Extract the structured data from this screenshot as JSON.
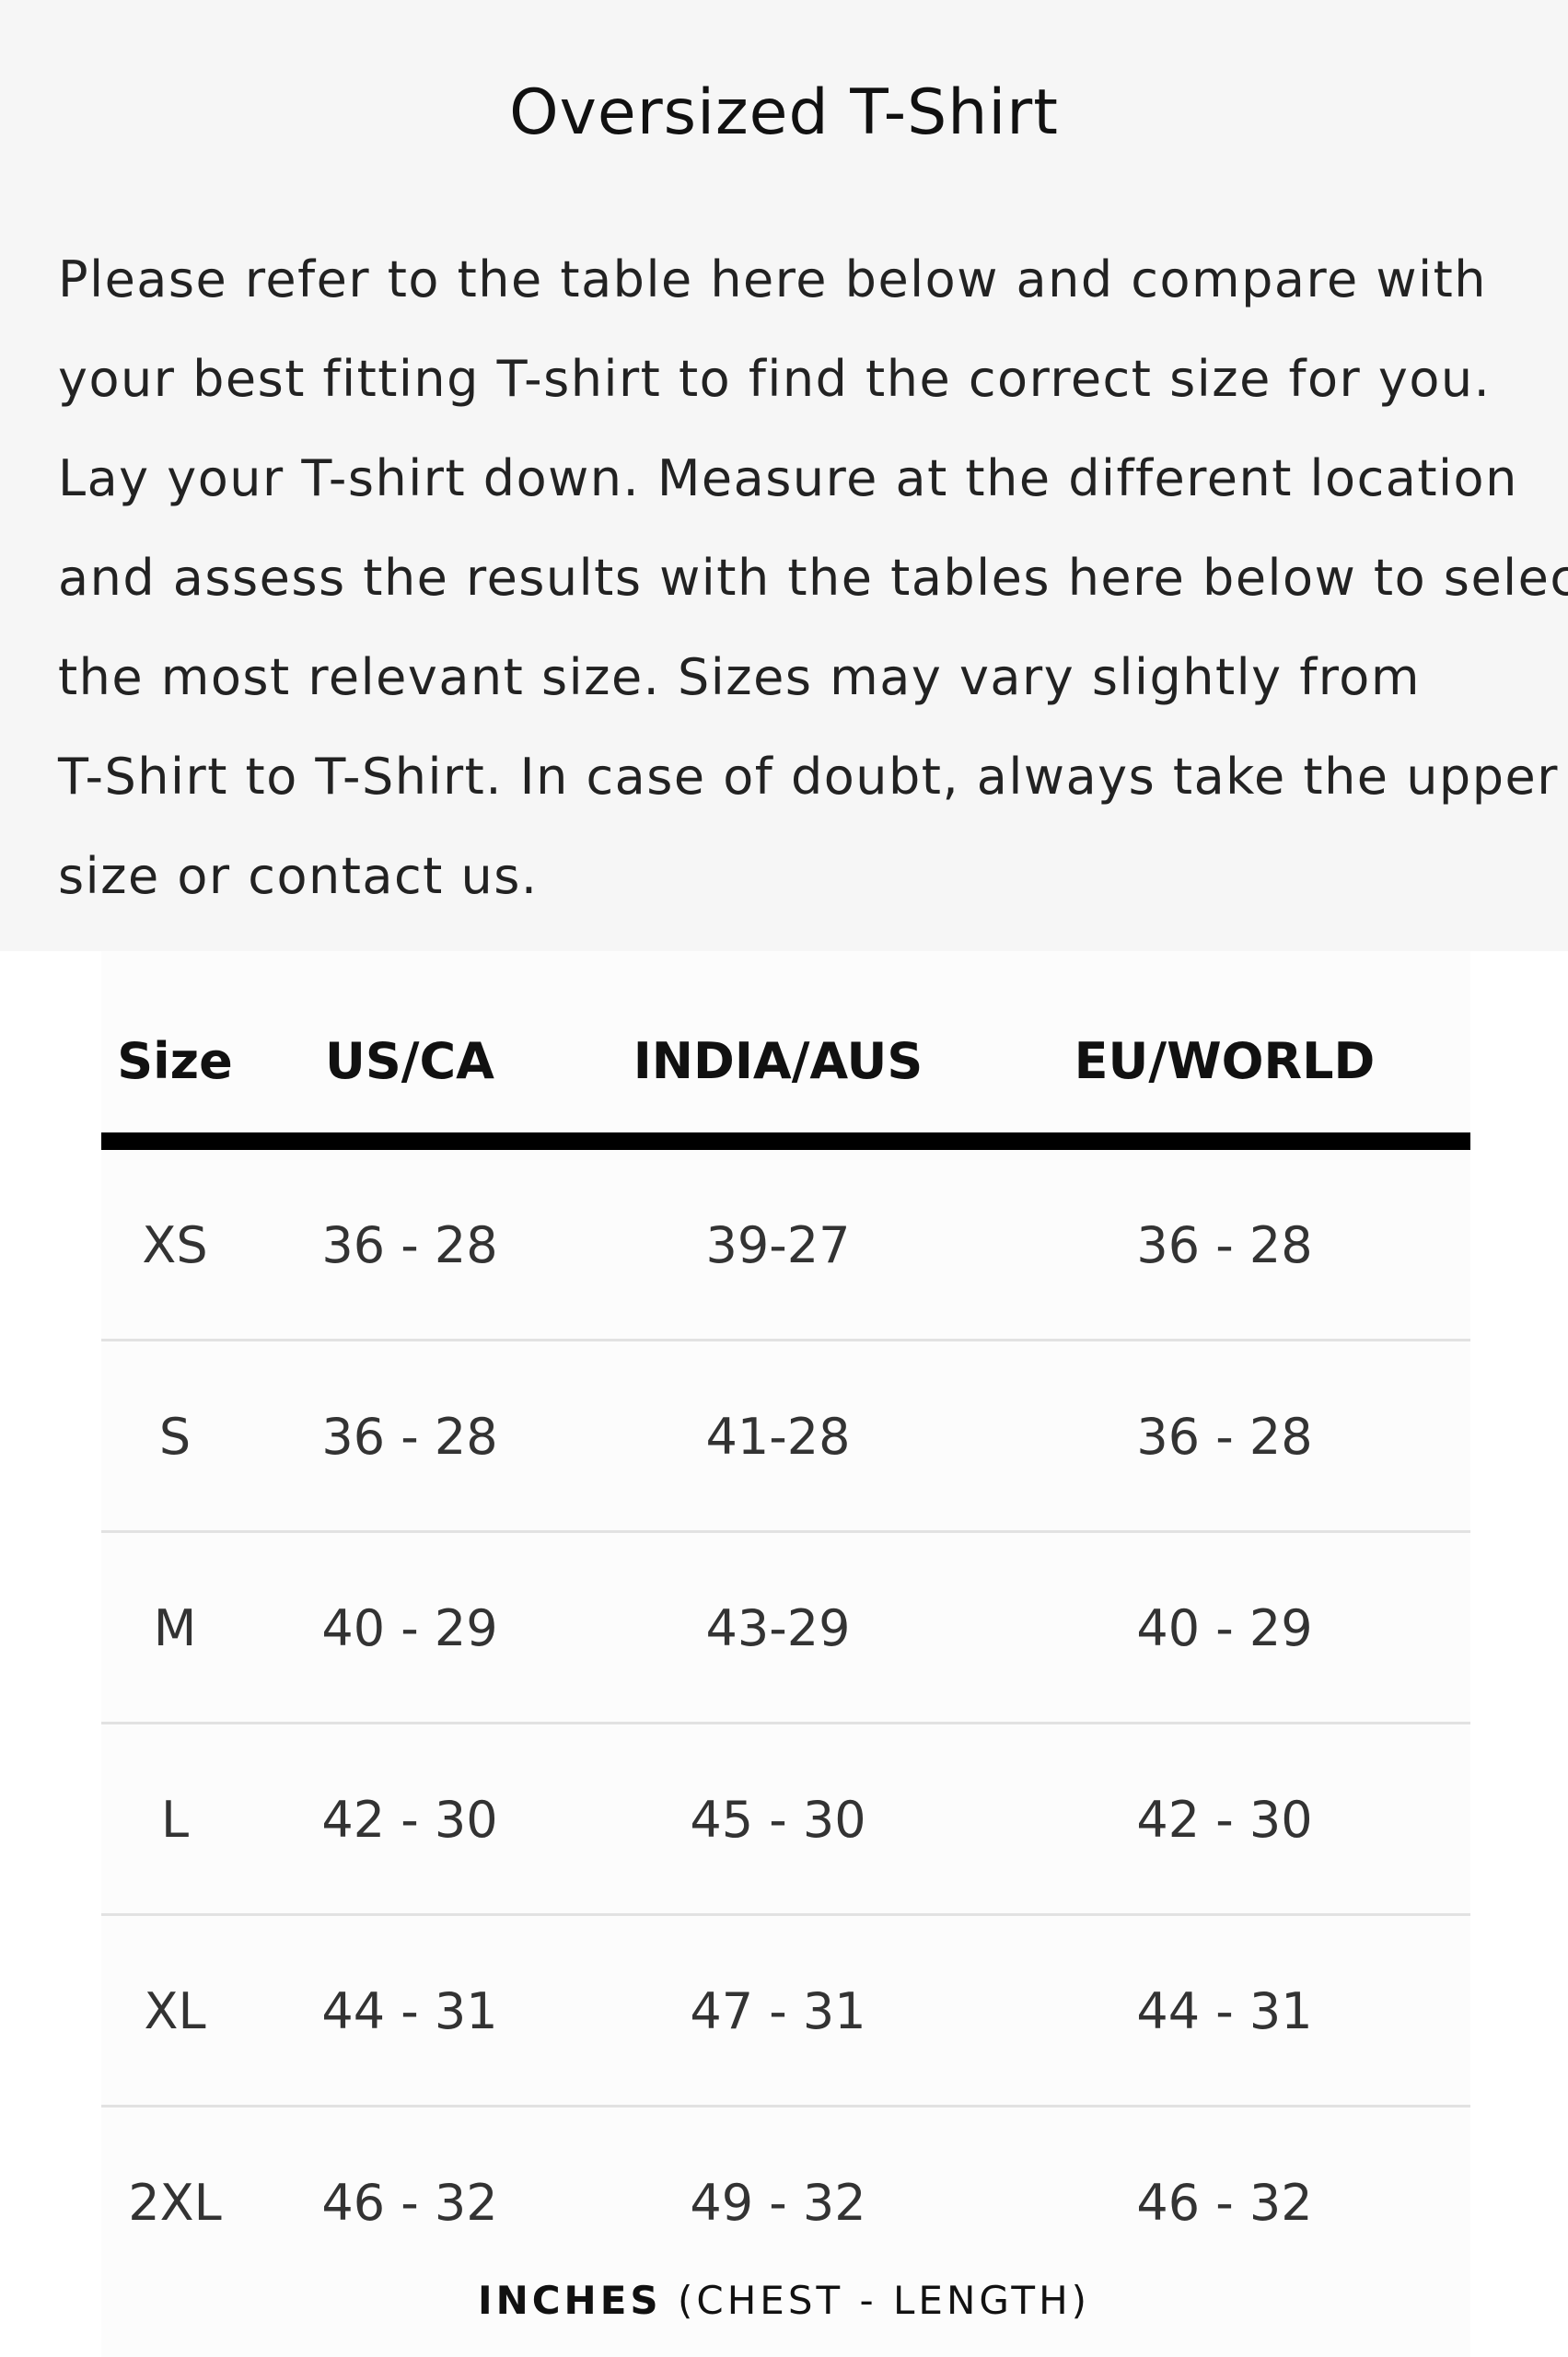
{
  "header": {
    "title": "Oversized T-Shirt"
  },
  "description": {
    "lines": [
      "Please refer to the table here below and compare with",
      "your best fitting T-shirt to find the correct size for you.",
      "Lay your T-shirt down. Measure at the different location",
      "and assess the results with the tables here below to select",
      "the most relevant size. Sizes may vary slightly from",
      "T-Shirt to T-Shirt. In case of doubt, always take the upper",
      "size or contact us."
    ]
  },
  "table": {
    "headers": [
      "Size",
      "US/CA",
      "INDIA/AUS",
      "EU/WORLD"
    ],
    "rows": [
      [
        "XS",
        "36 - 28",
        "39-27",
        "36 - 28"
      ],
      [
        "S",
        "36 - 28",
        "41-28",
        "36 - 28"
      ],
      [
        "M",
        "40 - 29",
        "43-29",
        "40 - 29"
      ],
      [
        "L",
        "42 - 30",
        "45 - 30",
        "42 - 30"
      ],
      [
        "XL",
        "44 - 31",
        "47 - 31",
        "44 - 31"
      ],
      [
        "2XL",
        "46 - 32",
        "49 - 32",
        "46 - 32"
      ]
    ]
  },
  "footer": {
    "unit_bold": "INCHES",
    "unit_rest": " (CHEST - LENGTH)"
  }
}
